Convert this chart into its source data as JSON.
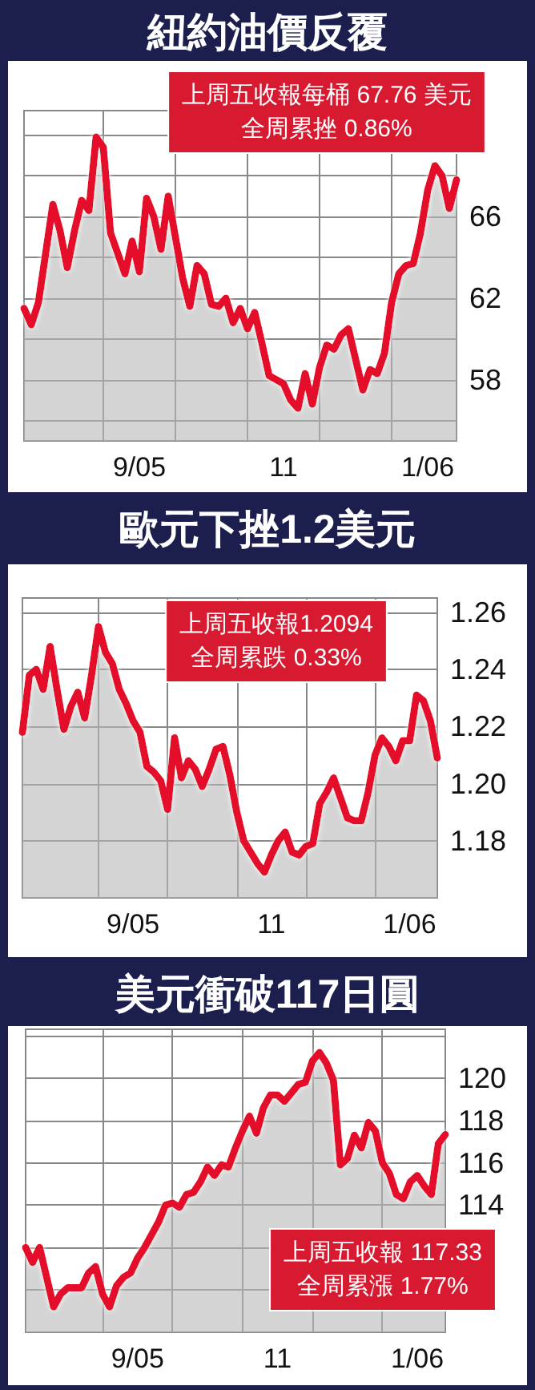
{
  "chart_data": [
    {
      "type": "area",
      "title": "紐約油價反覆",
      "annotations": [
        "上周五收報每桶 67.76 美元",
        "全周累挫 0.86%"
      ],
      "categories": [
        null,
        null,
        null,
        null,
        null,
        null,
        null,
        null,
        null,
        null,
        null,
        null,
        null,
        null,
        null,
        null,
        "9/05",
        null,
        null,
        null,
        null,
        null,
        null,
        null,
        null,
        null,
        null,
        null,
        null,
        null,
        null,
        null,
        null,
        null,
        null,
        null,
        "11",
        null,
        null,
        null,
        null,
        null,
        null,
        null,
        null,
        null,
        null,
        null,
        null,
        null,
        null,
        null,
        null,
        null,
        null,
        null,
        "1/06",
        null,
        null,
        null,
        null
      ],
      "values": [
        61.5,
        60.7,
        61.8,
        64.2,
        66.6,
        65.3,
        63.5,
        65.3,
        66.8,
        66.3,
        69.9,
        69.4,
        65.2,
        64.2,
        63.2,
        64.8,
        63.3,
        66.9,
        66.0,
        64.4,
        67.0,
        65.0,
        63.0,
        61.6,
        63.6,
        63.2,
        61.7,
        61.6,
        62.0,
        60.8,
        61.5,
        60.5,
        61.3,
        59.8,
        58.2,
        58.0,
        57.8,
        57.0,
        56.6,
        58.3,
        56.8,
        58.6,
        59.7,
        59.5,
        60.2,
        60.5,
        59.0,
        57.5,
        58.5,
        58.3,
        59.3,
        61.8,
        63.2,
        63.6,
        63.7,
        65.2,
        67.3,
        68.5,
        68.0,
        66.4,
        67.8
      ],
      "color": "#e4102c",
      "ylim": [
        55,
        71.2
      ],
      "yticks": [
        {
          "value": 56,
          "label": null
        },
        58,
        {
          "value": 60,
          "label": null
        },
        62,
        {
          "value": 64,
          "label": null
        },
        66,
        {
          "value": 68,
          "label": null
        },
        {
          "value": 70,
          "label": null
        }
      ],
      "grid": true
    },
    {
      "type": "area",
      "title": "歐元下挫1.2美元",
      "annotations": [
        "上周五收報1.2094",
        "全周累跌 0.33%"
      ],
      "categories": [
        null,
        null,
        null,
        null,
        null,
        null,
        null,
        null,
        null,
        null,
        null,
        null,
        null,
        null,
        null,
        null,
        "9/05",
        null,
        null,
        null,
        null,
        null,
        null,
        null,
        null,
        null,
        null,
        null,
        null,
        null,
        null,
        null,
        null,
        null,
        null,
        null,
        "11",
        null,
        null,
        null,
        null,
        null,
        null,
        null,
        null,
        null,
        null,
        null,
        null,
        null,
        null,
        null,
        null,
        null,
        null,
        null,
        "1/06",
        null,
        null,
        null,
        null
      ],
      "values": [
        1.218,
        1.238,
        1.24,
        1.233,
        1.248,
        1.233,
        1.219,
        1.227,
        1.232,
        1.223,
        1.238,
        1.255,
        1.246,
        1.242,
        1.233,
        1.228,
        1.222,
        1.218,
        1.206,
        1.204,
        1.201,
        1.191,
        1.216,
        1.202,
        1.208,
        1.205,
        1.199,
        1.205,
        1.212,
        1.213,
        1.203,
        1.19,
        1.18,
        1.176,
        1.172,
        1.169,
        1.175,
        1.18,
        1.183,
        1.176,
        1.175,
        1.178,
        1.179,
        1.193,
        1.197,
        1.202,
        1.195,
        1.188,
        1.187,
        1.187,
        1.197,
        1.21,
        1.216,
        1.213,
        1.208,
        1.215,
        1.215,
        1.231,
        1.229,
        1.222,
        1.209
      ],
      "color": "#e4102c",
      "ylim": [
        1.16,
        1.265
      ],
      "yticks": [
        {
          "value": 1.18,
          "label": "1.18"
        },
        {
          "value": 1.2,
          "label": "1.20"
        },
        {
          "value": 1.22,
          "label": "1.22"
        },
        {
          "value": 1.24,
          "label": "1.24"
        },
        {
          "value": 1.26,
          "label": "1.26"
        }
      ],
      "grid": true
    },
    {
      "type": "area",
      "title": "美元衝破117日圓",
      "annotations": [
        "上周五收報 117.33",
        "全周累漲 1.77%"
      ],
      "categories": [
        null,
        null,
        null,
        null,
        null,
        null,
        null,
        null,
        null,
        null,
        null,
        null,
        null,
        null,
        null,
        null,
        "9/05",
        null,
        null,
        null,
        null,
        null,
        null,
        null,
        null,
        null,
        null,
        null,
        null,
        null,
        null,
        null,
        null,
        null,
        null,
        null,
        "11",
        null,
        null,
        null,
        null,
        null,
        null,
        null,
        null,
        null,
        null,
        null,
        null,
        null,
        null,
        null,
        null,
        null,
        null,
        null,
        "1/06",
        null,
        null,
        null,
        null
      ],
      "values": [
        112.0,
        111.3,
        112.0,
        110.6,
        109.2,
        109.8,
        110.1,
        110.1,
        110.1,
        110.8,
        111.1,
        109.8,
        109.2,
        110.2,
        110.6,
        110.8,
        111.5,
        112.0,
        112.6,
        113.2,
        114.0,
        114.1,
        113.9,
        114.5,
        114.6,
        115.1,
        115.8,
        115.4,
        115.9,
        115.8,
        116.7,
        117.5,
        118.2,
        117.4,
        118.6,
        119.2,
        119.2,
        118.9,
        119.3,
        119.7,
        119.8,
        120.8,
        121.2,
        120.7,
        119.9,
        115.9,
        116.2,
        117.3,
        116.7,
        117.9,
        117.5,
        116.0,
        115.5,
        114.5,
        114.3,
        115.1,
        115.4,
        114.9,
        114.5,
        116.9,
        117.33
      ],
      "color": "#e4102c",
      "ylim": [
        108,
        122.3
      ],
      "yticks": [
        {
          "value": 110,
          "label": null
        },
        {
          "value": 112,
          "label": null
        },
        114,
        116,
        118,
        120,
        {
          "value": 122,
          "label": null
        }
      ],
      "grid": true
    }
  ]
}
